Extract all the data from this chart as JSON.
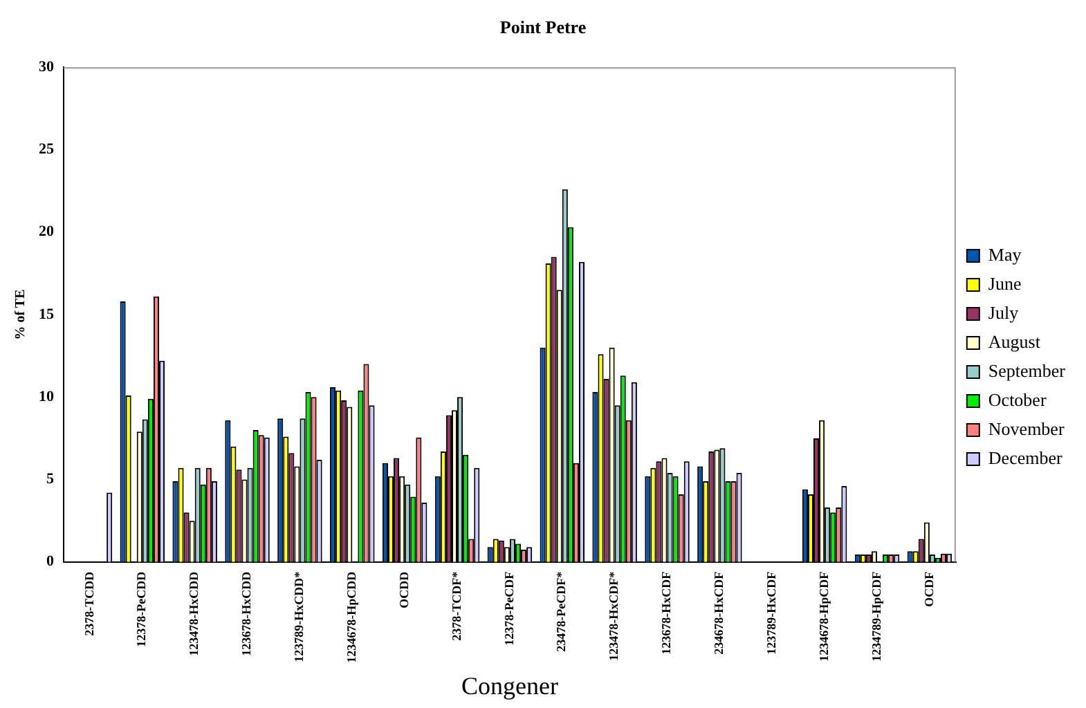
{
  "chart_data": {
    "type": "bar",
    "title": "Point Petre",
    "xlabel": "Congener",
    "ylabel": "% of TE",
    "categories": [
      "2378-TCDD",
      "12378-PeCDD",
      "123478-HxCDD",
      "123678-HxCDD",
      "123789-HxCDD*",
      "1234678-HpCDD",
      "OCDD",
      "2378-TCDF*",
      "12378-PeCDF",
      "23478-PeCDF*",
      "123478-HxCDF*",
      "123678-HxCDF",
      "234678-HxCDF",
      "123789-HxCDF",
      "1234678-HpCDF",
      "1234789-HpCDF",
      "OCDF"
    ],
    "series": [
      {
        "name": "May",
        "color": "#0055b0",
        "values": [
          0,
          15.8,
          4.9,
          8.6,
          8.7,
          10.6,
          6.0,
          5.2,
          0.9,
          13.0,
          10.3,
          5.2,
          5.8,
          0,
          4.4,
          0.45,
          0.65
        ]
      },
      {
        "name": "June",
        "color": "#ffff00",
        "values": [
          0,
          10.1,
          5.7,
          7.0,
          7.6,
          10.4,
          5.2,
          6.7,
          1.4,
          18.1,
          12.6,
          5.7,
          4.9,
          0,
          4.1,
          0.45,
          0.65
        ]
      },
      {
        "name": "July",
        "color": "#993366",
        "values": [
          0,
          0,
          3.0,
          5.6,
          6.6,
          9.8,
          6.3,
          8.9,
          1.3,
          18.5,
          11.1,
          6.1,
          6.7,
          0,
          7.5,
          0.45,
          1.4
        ]
      },
      {
        "name": "August",
        "color": "#ffffcc",
        "values": [
          0,
          7.9,
          2.5,
          5.0,
          5.8,
          9.4,
          5.2,
          9.2,
          0.9,
          16.5,
          13.0,
          6.3,
          6.8,
          0,
          8.6,
          0.65,
          2.4
        ]
      },
      {
        "name": "September",
        "color": "#99cccc",
        "values": [
          0,
          8.65,
          5.7,
          5.7,
          8.7,
          0,
          4.7,
          10.0,
          1.4,
          22.6,
          9.5,
          5.4,
          6.9,
          0,
          3.3,
          0,
          0.45
        ]
      },
      {
        "name": "October",
        "color": "#00ee00",
        "values": [
          0,
          9.9,
          4.7,
          8.0,
          10.3,
          10.4,
          3.95,
          6.5,
          1.1,
          20.3,
          11.3,
          5.2,
          4.9,
          0,
          3.0,
          0.45,
          0.25
        ]
      },
      {
        "name": "November",
        "color": "#ff8080",
        "values": [
          0,
          16.1,
          5.7,
          7.7,
          10.0,
          12.0,
          7.55,
          1.4,
          0.75,
          6.0,
          8.6,
          4.1,
          4.9,
          0,
          3.3,
          0.45,
          0.5
        ]
      },
      {
        "name": "December",
        "color": "#ccccff",
        "values": [
          4.2,
          12.2,
          4.9,
          7.55,
          6.2,
          9.5,
          3.6,
          5.7,
          0.9,
          18.2,
          10.9,
          6.1,
          5.4,
          0,
          4.6,
          0.45,
          0.5
        ]
      }
    ],
    "ylim": [
      0,
      30
    ],
    "yticks": [
      0,
      5,
      10,
      15,
      20,
      25,
      30
    ],
    "grid": false,
    "legend": "right"
  }
}
